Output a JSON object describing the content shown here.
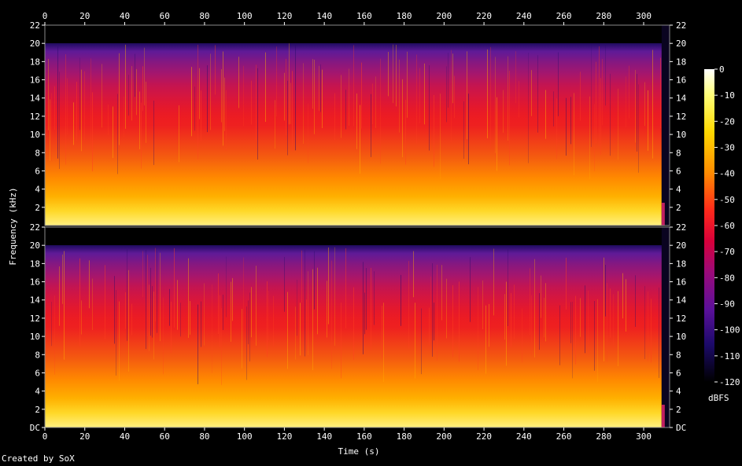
{
  "chart_data": {
    "type": "heatmap",
    "title": "",
    "xlabel": "Time (s)",
    "ylabel": "Frequency (kHz)",
    "xlim": [
      0,
      313
    ],
    "ylim": [
      0,
      22
    ],
    "x_ticks": [
      "0",
      "20",
      "40",
      "60",
      "80",
      "100",
      "120",
      "140",
      "160",
      "180",
      "200",
      "220",
      "240",
      "260",
      "280",
      "300"
    ],
    "y_ticks": [
      "DC",
      "2",
      "4",
      "6",
      "8",
      "10",
      "12",
      "14",
      "16",
      "18",
      "20",
      "22"
    ],
    "y_ticks_top_channel": [
      "2",
      "4",
      "6",
      "8",
      "10",
      "12",
      "14",
      "16",
      "18",
      "20",
      "22"
    ],
    "channels": 2,
    "colorbar": {
      "label": "dBFS",
      "ticks": [
        "0",
        "-10",
        "-20",
        "-30",
        "-40",
        "-50",
        "-60",
        "-70",
        "-80",
        "-90",
        "-100",
        "-110",
        "-120"
      ],
      "range": [
        -120,
        0
      ]
    },
    "lowpass_cutoff_khz": 20,
    "end_fade_start_s": 309
  },
  "credit": "Created by SoX"
}
